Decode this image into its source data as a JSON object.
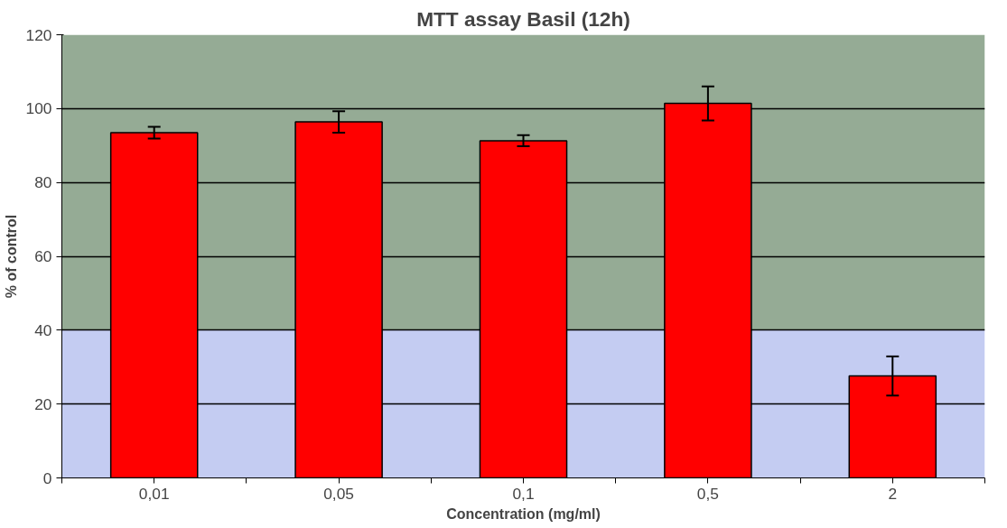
{
  "chart_data": {
    "type": "bar",
    "title": "MTT assay Basil (12h)",
    "xlabel": "Concentration (mg/ml)",
    "ylabel": "% of control",
    "categories": [
      "0,01",
      "0,05",
      "0,1",
      "0,5",
      "2"
    ],
    "series": [
      {
        "color": "#ff0000",
        "values": [
          93.5,
          96.4,
          91.3,
          101.4,
          27.6
        ],
        "errors": [
          1.6,
          2.9,
          1.5,
          4.6,
          5.3
        ]
      }
    ],
    "ylim": [
      0,
      120
    ],
    "yticks": [
      0,
      20,
      40,
      60,
      80,
      100,
      120
    ],
    "grid": "y",
    "bands": [
      {
        "axis": "y",
        "from": 0,
        "to": 40,
        "color": "#c4ccf2"
      },
      {
        "axis": "y",
        "from": 40,
        "to": 120,
        "color": "#95ab95"
      }
    ]
  }
}
